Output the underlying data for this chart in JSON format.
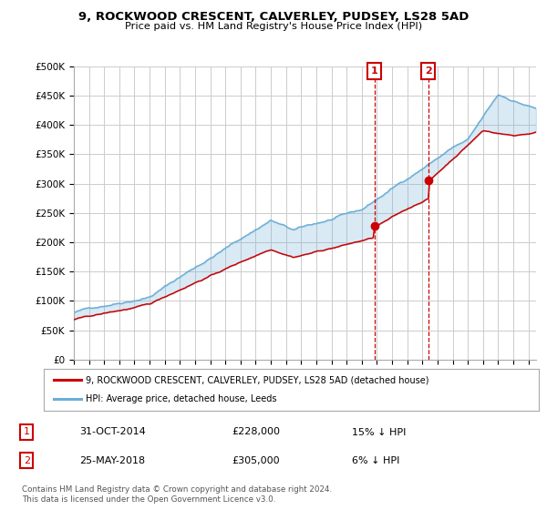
{
  "title": "9, ROCKWOOD CRESCENT, CALVERLEY, PUDSEY, LS28 5AD",
  "subtitle": "Price paid vs. HM Land Registry's House Price Index (HPI)",
  "ylabel_ticks": [
    "£0",
    "£50K",
    "£100K",
    "£150K",
    "£200K",
    "£250K",
    "£300K",
    "£350K",
    "£400K",
    "£450K",
    "£500K"
  ],
  "ytick_vals": [
    0,
    50000,
    100000,
    150000,
    200000,
    250000,
    300000,
    350000,
    400000,
    450000,
    500000
  ],
  "ylim": [
    0,
    500000
  ],
  "xlim_start": 1995.0,
  "xlim_end": 2025.5,
  "purchase1_x": 2014.833,
  "purchase1_y": 228000,
  "purchase2_x": 2018.38,
  "purchase2_y": 305000,
  "purchase1_date": "31-OCT-2014",
  "purchase1_price": "£228,000",
  "purchase1_hpi": "15% ↓ HPI",
  "purchase2_date": "25-MAY-2018",
  "purchase2_price": "£305,000",
  "purchase2_hpi": "6% ↓ HPI",
  "legend_line1": "9, ROCKWOOD CRESCENT, CALVERLEY, PUDSEY, LS28 5AD (detached house)",
  "legend_line2": "HPI: Average price, detached house, Leeds",
  "footnote": "Contains HM Land Registry data © Crown copyright and database right 2024.\nThis data is licensed under the Open Government Licence v3.0.",
  "hpi_color": "#6baed6",
  "price_color": "#cc0000",
  "grid_color": "#cccccc",
  "background_color": "#ffffff"
}
